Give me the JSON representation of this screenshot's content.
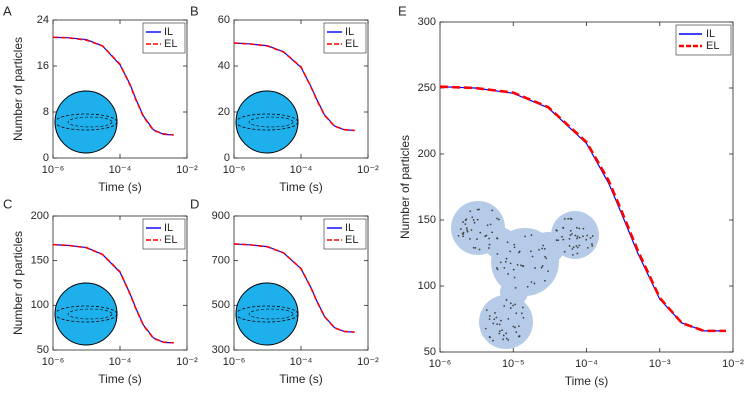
{
  "chart_data": [
    {
      "type": "line",
      "panel": "A",
      "xlabel": "Time (s)",
      "ylabel": "Number of particles",
      "log_x": true,
      "legend": "upper right",
      "x": [
        1e-06,
        3e-06,
        1e-05,
        3e-05,
        0.0001,
        0.0002,
        0.0003,
        0.0005,
        0.001,
        0.002,
        0.004
      ],
      "series": [
        {
          "name": "IL",
          "color": "#0000ff",
          "values": [
            21,
            20.9,
            20.6,
            19.5,
            16.2,
            12.8,
            10.2,
            7.3,
            4.9,
            4.1,
            4.0
          ]
        },
        {
          "name": "EL",
          "color": "#ff0000",
          "values": [
            21,
            20.9,
            20.5,
            19.5,
            16.3,
            12.7,
            10.1,
            7.2,
            4.8,
            4.2,
            4.0
          ]
        }
      ],
      "xlim": [
        1e-06,
        0.01
      ],
      "xticks": [
        {
          "value": 1e-06,
          "label": "10⁻⁶"
        },
        {
          "value": 0.0001,
          "label": "10⁻⁴"
        },
        {
          "value": 0.01,
          "label": "10⁻²"
        }
      ],
      "ylim": [
        0,
        24
      ],
      "yticks": [
        0,
        8,
        16,
        24
      ]
    },
    {
      "type": "line",
      "panel": "B",
      "xlabel": "Time (s)",
      "log_x": true,
      "legend": "upper right",
      "x": [
        1e-06,
        3e-06,
        1e-05,
        3e-05,
        0.0001,
        0.0002,
        0.0003,
        0.0005,
        0.001,
        0.002,
        0.004
      ],
      "series": [
        {
          "name": "IL",
          "color": "#0000ff",
          "values": [
            50,
            49.6,
            48.8,
            46.2,
            39.4,
            31,
            25.3,
            18.8,
            13.9,
            12.2,
            12
          ]
        },
        {
          "name": "EL",
          "color": "#ff0000",
          "values": [
            50,
            49.6,
            48.7,
            46.1,
            39.6,
            30.8,
            25.1,
            18.7,
            13.8,
            12.3,
            12
          ]
        }
      ],
      "xlim": [
        1e-06,
        0.01
      ],
      "xticks": [
        {
          "value": 1e-06,
          "label": "10⁻⁶"
        },
        {
          "value": 0.0001,
          "label": "10⁻⁴"
        },
        {
          "value": 0.01,
          "label": "10⁻²"
        }
      ],
      "ylim": [
        0,
        60
      ],
      "yticks": [
        0,
        20,
        40,
        60
      ]
    },
    {
      "type": "line",
      "panel": "C",
      "xlabel": "Time (s)",
      "ylabel": "Number of particles",
      "log_x": true,
      "legend": "upper right",
      "x": [
        1e-06,
        3e-06,
        1e-05,
        3e-05,
        0.0001,
        0.0002,
        0.0003,
        0.0005,
        0.001,
        0.002,
        0.004
      ],
      "series": [
        {
          "name": "IL",
          "color": "#0000ff",
          "values": [
            168,
            167,
            164.7,
            157,
            137,
            113,
            96.5,
            78,
            63.5,
            58.5,
            58
          ]
        },
        {
          "name": "EL",
          "color": "#ff0000",
          "values": [
            168,
            167,
            164.5,
            157,
            137.5,
            112.5,
            96,
            77.5,
            63,
            58.7,
            58
          ]
        }
      ],
      "xlim": [
        1e-06,
        0.01
      ],
      "xticks": [
        {
          "value": 1e-06,
          "label": "10⁻⁶"
        },
        {
          "value": 0.0001,
          "label": "10⁻⁴"
        },
        {
          "value": 0.01,
          "label": "10⁻²"
        }
      ],
      "ylim": [
        50,
        200
      ],
      "yticks": [
        50,
        100,
        150,
        200
      ]
    },
    {
      "type": "line",
      "panel": "D",
      "xlabel": "Time (s)",
      "log_x": true,
      "legend": "upper right",
      "x": [
        1e-06,
        3e-06,
        1e-05,
        3e-05,
        0.0001,
        0.0002,
        0.0003,
        0.0005,
        0.001,
        0.002,
        0.004
      ],
      "series": [
        {
          "name": "IL",
          "color": "#0000ff",
          "values": [
            775,
            771,
            763,
            735,
            664,
            578,
            518,
            451,
            400,
            382,
            380
          ]
        },
        {
          "name": "EL",
          "color": "#ff0000",
          "values": [
            775,
            771,
            762,
            735,
            665,
            577,
            517,
            450,
            399,
            383,
            380
          ]
        }
      ],
      "xlim": [
        1e-06,
        0.01
      ],
      "xticks": [
        {
          "value": 1e-06,
          "label": "10⁻⁶"
        },
        {
          "value": 0.0001,
          "label": "10⁻⁴"
        },
        {
          "value": 0.01,
          "label": "10⁻²"
        }
      ],
      "ylim": [
        300,
        900
      ],
      "yticks": [
        300,
        500,
        700,
        900
      ]
    },
    {
      "type": "line",
      "panel": "E",
      "xlabel": "Time (s)",
      "ylabel": "Number of particles",
      "log_x": true,
      "legend": "upper right",
      "x": [
        1e-06,
        3e-06,
        1e-05,
        3e-05,
        0.0001,
        0.0002,
        0.0003,
        0.0005,
        0.001,
        0.002,
        0.004,
        0.008
      ],
      "series": [
        {
          "name": "IL",
          "color": "#0000ff",
          "values": [
            251,
            250,
            246,
            235,
            208,
            178,
            155,
            125,
            90,
            72,
            66,
            66
          ]
        },
        {
          "name": "EL",
          "color": "#ff0000",
          "values": [
            251,
            250,
            246.5,
            235.5,
            209,
            180,
            157,
            127,
            91,
            72,
            66,
            66
          ]
        }
      ],
      "xlim": [
        1e-06,
        0.01
      ],
      "xticks": [
        {
          "value": 1e-06,
          "label": "10⁻⁶"
        },
        {
          "value": 1e-05,
          "label": "10⁻⁵"
        },
        {
          "value": 0.0001,
          "label": "10⁻⁴"
        },
        {
          "value": 0.001,
          "label": "10⁻³"
        },
        {
          "value": 0.01,
          "label": "10⁻²"
        }
      ],
      "ylim": [
        50,
        300
      ],
      "yticks": [
        50,
        100,
        150,
        200,
        250,
        300
      ]
    }
  ]
}
